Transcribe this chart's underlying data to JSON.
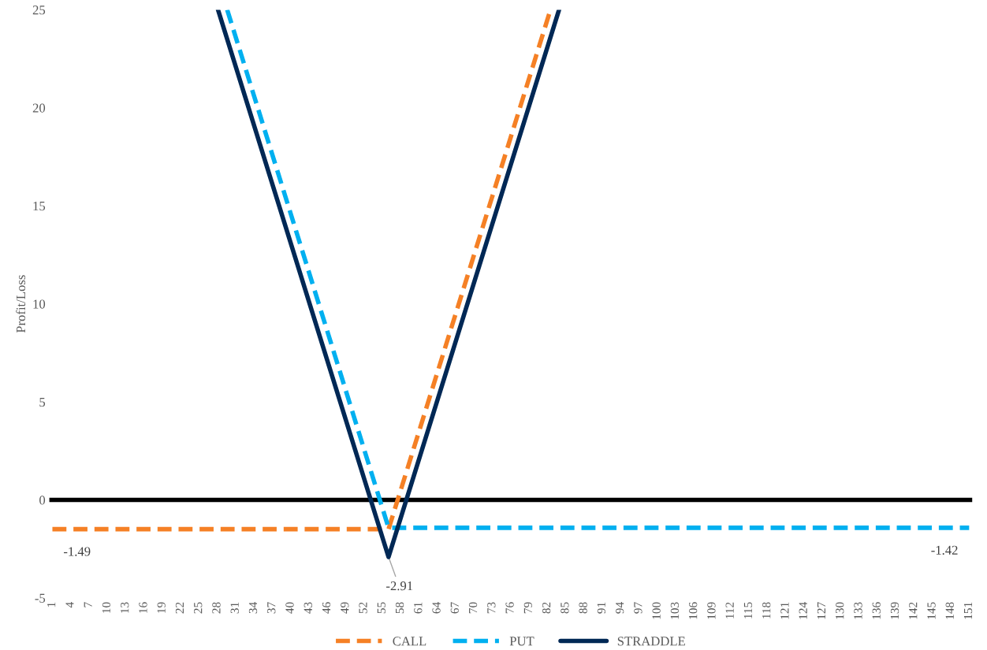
{
  "chart_data": {
    "type": "line",
    "ylabel": "Profit/Loss",
    "xlim": [
      0.5,
      151.5
    ],
    "xticks": [
      1,
      4,
      7,
      10,
      13,
      16,
      19,
      22,
      25,
      28,
      31,
      34,
      37,
      40,
      43,
      46,
      49,
      52,
      55,
      58,
      61,
      64,
      67,
      70,
      73,
      76,
      79,
      82,
      85,
      88,
      91,
      94,
      97,
      100,
      103,
      106,
      109,
      112,
      115,
      118,
      121,
      124,
      127,
      130,
      133,
      136,
      139,
      142,
      145,
      148,
      151
    ],
    "ylim": [
      -5,
      25
    ],
    "yticks": [
      -5,
      0,
      5,
      10,
      15,
      20,
      25
    ],
    "series": [
      {
        "name": "CALL",
        "color": "#f58025",
        "line_style": "dashed",
        "x": [
          1,
          56,
          82.5
        ],
        "values": [
          -1.49,
          -1.49,
          25
        ]
      },
      {
        "name": "PUT",
        "color": "#00b0f0",
        "line_style": "dashed",
        "x": [
          29.6,
          56,
          151
        ],
        "values": [
          25,
          -1.42,
          -1.42
        ]
      },
      {
        "name": "STRADDLE",
        "color": "#002855",
        "line_style": "solid",
        "x": [
          28.1,
          56,
          83.9
        ],
        "values": [
          25,
          -2.91,
          25
        ]
      }
    ],
    "ref_lines": [
      {
        "axis": "y",
        "value": 0,
        "color": "#000000",
        "line_style": "solid"
      }
    ],
    "annotations": [
      {
        "text": "-1.49",
        "x": 1,
        "y": -1.49
      },
      {
        "text": "-1.42",
        "x": 151,
        "y": -1.42
      },
      {
        "text": "-2.91",
        "x": 56,
        "y": -2.91
      }
    ],
    "grid": false,
    "legend": "bottom",
    "marker": "none"
  }
}
